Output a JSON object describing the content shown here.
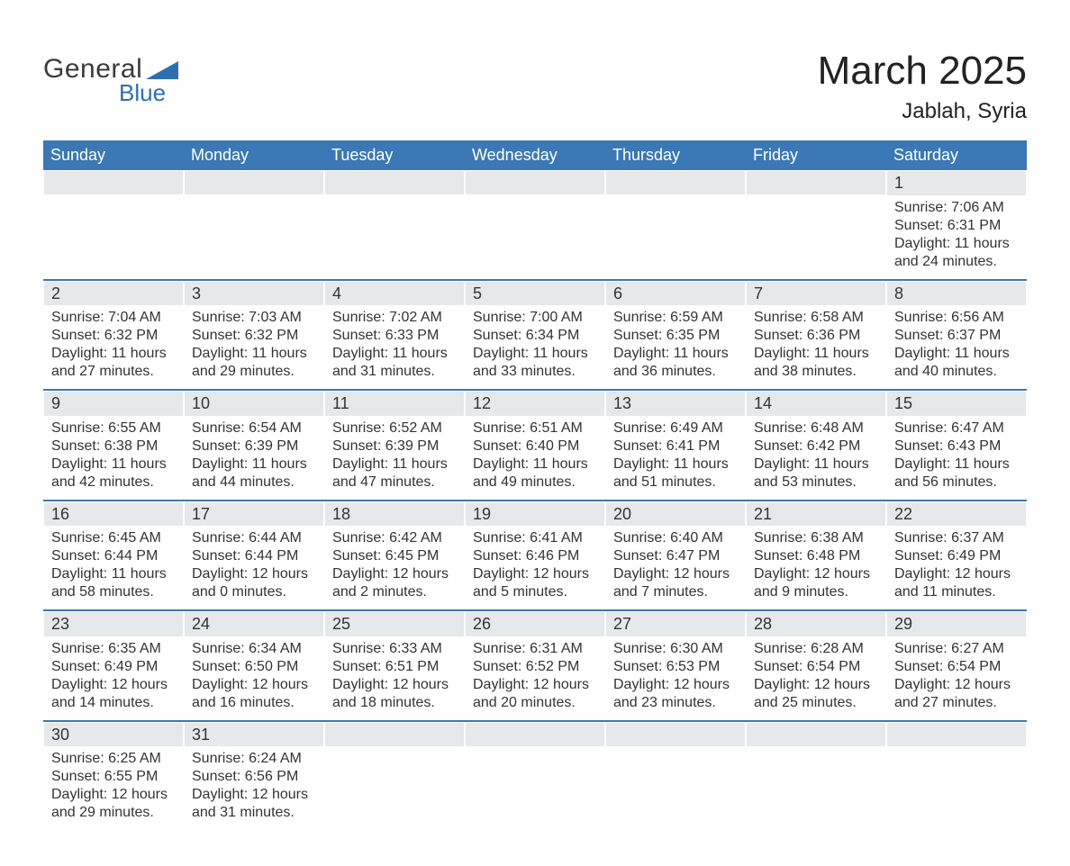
{
  "brand": {
    "line1": "General",
    "line2": "Blue",
    "logo_color": "#2f6fb0",
    "text_color": "#3b3b3b"
  },
  "title": "March 2025",
  "location": "Jablah, Syria",
  "colors": {
    "header_bg": "#3b78b5",
    "header_text": "#ffffff",
    "strip_bg": "#e6e8eb",
    "row_border": "#3b78b5",
    "body_text": "#333333",
    "page_bg": "#ffffff"
  },
  "typography": {
    "title_fontsize_pt": 33,
    "location_fontsize_pt": 18,
    "header_fontsize_pt": 13,
    "cell_fontsize_pt": 12,
    "font_family": "Arial"
  },
  "weekday_labels": [
    "Sunday",
    "Monday",
    "Tuesday",
    "Wednesday",
    "Thursday",
    "Friday",
    "Saturday"
  ],
  "labels": {
    "sunrise": "Sunrise",
    "sunset": "Sunset",
    "daylight": "Daylight"
  },
  "days": [
    {
      "n": 1,
      "sr": "7:06 AM",
      "ss": "6:31 PM",
      "dl": "11 hours and 24 minutes."
    },
    {
      "n": 2,
      "sr": "7:04 AM",
      "ss": "6:32 PM",
      "dl": "11 hours and 27 minutes."
    },
    {
      "n": 3,
      "sr": "7:03 AM",
      "ss": "6:32 PM",
      "dl": "11 hours and 29 minutes."
    },
    {
      "n": 4,
      "sr": "7:02 AM",
      "ss": "6:33 PM",
      "dl": "11 hours and 31 minutes."
    },
    {
      "n": 5,
      "sr": "7:00 AM",
      "ss": "6:34 PM",
      "dl": "11 hours and 33 minutes."
    },
    {
      "n": 6,
      "sr": "6:59 AM",
      "ss": "6:35 PM",
      "dl": "11 hours and 36 minutes."
    },
    {
      "n": 7,
      "sr": "6:58 AM",
      "ss": "6:36 PM",
      "dl": "11 hours and 38 minutes."
    },
    {
      "n": 8,
      "sr": "6:56 AM",
      "ss": "6:37 PM",
      "dl": "11 hours and 40 minutes."
    },
    {
      "n": 9,
      "sr": "6:55 AM",
      "ss": "6:38 PM",
      "dl": "11 hours and 42 minutes."
    },
    {
      "n": 10,
      "sr": "6:54 AM",
      "ss": "6:39 PM",
      "dl": "11 hours and 44 minutes."
    },
    {
      "n": 11,
      "sr": "6:52 AM",
      "ss": "6:39 PM",
      "dl": "11 hours and 47 minutes."
    },
    {
      "n": 12,
      "sr": "6:51 AM",
      "ss": "6:40 PM",
      "dl": "11 hours and 49 minutes."
    },
    {
      "n": 13,
      "sr": "6:49 AM",
      "ss": "6:41 PM",
      "dl": "11 hours and 51 minutes."
    },
    {
      "n": 14,
      "sr": "6:48 AM",
      "ss": "6:42 PM",
      "dl": "11 hours and 53 minutes."
    },
    {
      "n": 15,
      "sr": "6:47 AM",
      "ss": "6:43 PM",
      "dl": "11 hours and 56 minutes."
    },
    {
      "n": 16,
      "sr": "6:45 AM",
      "ss": "6:44 PM",
      "dl": "11 hours and 58 minutes."
    },
    {
      "n": 17,
      "sr": "6:44 AM",
      "ss": "6:44 PM",
      "dl": "12 hours and 0 minutes."
    },
    {
      "n": 18,
      "sr": "6:42 AM",
      "ss": "6:45 PM",
      "dl": "12 hours and 2 minutes."
    },
    {
      "n": 19,
      "sr": "6:41 AM",
      "ss": "6:46 PM",
      "dl": "12 hours and 5 minutes."
    },
    {
      "n": 20,
      "sr": "6:40 AM",
      "ss": "6:47 PM",
      "dl": "12 hours and 7 minutes."
    },
    {
      "n": 21,
      "sr": "6:38 AM",
      "ss": "6:48 PM",
      "dl": "12 hours and 9 minutes."
    },
    {
      "n": 22,
      "sr": "6:37 AM",
      "ss": "6:49 PM",
      "dl": "12 hours and 11 minutes."
    },
    {
      "n": 23,
      "sr": "6:35 AM",
      "ss": "6:49 PM",
      "dl": "12 hours and 14 minutes."
    },
    {
      "n": 24,
      "sr": "6:34 AM",
      "ss": "6:50 PM",
      "dl": "12 hours and 16 minutes."
    },
    {
      "n": 25,
      "sr": "6:33 AM",
      "ss": "6:51 PM",
      "dl": "12 hours and 18 minutes."
    },
    {
      "n": 26,
      "sr": "6:31 AM",
      "ss": "6:52 PM",
      "dl": "12 hours and 20 minutes."
    },
    {
      "n": 27,
      "sr": "6:30 AM",
      "ss": "6:53 PM",
      "dl": "12 hours and 23 minutes."
    },
    {
      "n": 28,
      "sr": "6:28 AM",
      "ss": "6:54 PM",
      "dl": "12 hours and 25 minutes."
    },
    {
      "n": 29,
      "sr": "6:27 AM",
      "ss": "6:54 PM",
      "dl": "12 hours and 27 minutes."
    },
    {
      "n": 30,
      "sr": "6:25 AM",
      "ss": "6:55 PM",
      "dl": "12 hours and 29 minutes."
    },
    {
      "n": 31,
      "sr": "6:24 AM",
      "ss": "6:56 PM",
      "dl": "12 hours and 31 minutes."
    }
  ],
  "layout": {
    "first_weekday_index": 6,
    "days_in_month": 31,
    "columns": 7
  }
}
